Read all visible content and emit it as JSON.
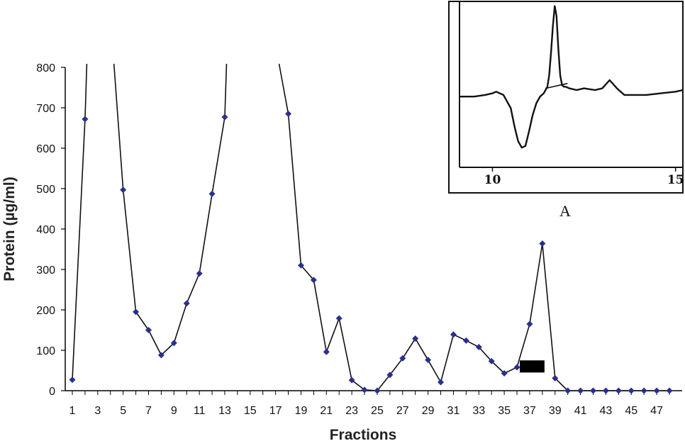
{
  "chart_data": [
    {
      "type": "line",
      "xlabel": "Fractions",
      "ylabel": "Protein (µg/ml)",
      "ylim": [
        0,
        800
      ],
      "xlim": [
        1,
        48
      ],
      "y_ticks": [
        0,
        100,
        200,
        300,
        400,
        500,
        600,
        700,
        800
      ],
      "x_ticks": [
        1,
        3,
        5,
        7,
        9,
        11,
        13,
        15,
        17,
        19,
        21,
        23,
        25,
        27,
        29,
        31,
        33,
        35,
        37,
        39,
        41,
        43,
        45,
        47
      ],
      "series": [
        {
          "x": [
            1,
            2,
            5,
            6,
            7,
            8,
            9,
            10,
            11,
            12,
            13,
            18,
            19,
            20,
            21,
            22,
            23,
            24,
            25,
            26,
            27,
            28,
            29,
            30,
            31,
            32,
            33,
            34,
            35,
            36,
            37,
            38,
            39,
            40,
            41,
            42,
            43,
            44,
            45,
            46,
            47,
            48
          ],
          "values": [
            27,
            672,
            497,
            195,
            150,
            88,
            118,
            216,
            290,
            487,
            677,
            685,
            310,
            274,
            96,
            179,
            26,
            2,
            0,
            39,
            80,
            129,
            76,
            21,
            139,
            124,
            108,
            73,
            43,
            58,
            165,
            364,
            31,
            0,
            0,
            0,
            0,
            0,
            0,
            0,
            0,
            0
          ],
          "color": "#2b2f8f"
        }
      ],
      "offscale_peaks": [
        {
          "from_fraction": 2,
          "to_fraction": 5
        },
        {
          "from_fraction": 13,
          "to_fraction": 18
        }
      ],
      "marker": {
        "fractions": [
          36,
          38
        ],
        "color": "#000000"
      },
      "grid": false,
      "legend": "none"
    },
    {
      "type": "line",
      "label": "A",
      "x_ticks": [
        10,
        15
      ],
      "xlim": [
        9.1,
        15.2
      ],
      "ylim": [
        0,
        1
      ],
      "series": [
        {
          "x": [
            9.1,
            9.5,
            9.8,
            10.0,
            10.1,
            10.3,
            10.5,
            10.6,
            10.7,
            10.8,
            10.9,
            11.0,
            11.1,
            11.2,
            11.3,
            11.4,
            11.5,
            11.55,
            11.6,
            11.65,
            11.7,
            11.75,
            11.8,
            11.85,
            11.9,
            11.95,
            12.0,
            12.1,
            12.3,
            12.5,
            12.8,
            13.0,
            13.2,
            13.4,
            13.6,
            13.8,
            14.2,
            14.6,
            15.0,
            15.2
          ],
          "values": [
            0.43,
            0.43,
            0.44,
            0.45,
            0.46,
            0.44,
            0.36,
            0.25,
            0.16,
            0.12,
            0.13,
            0.22,
            0.32,
            0.39,
            0.43,
            0.45,
            0.49,
            0.56,
            0.7,
            0.86,
            0.98,
            0.92,
            0.72,
            0.56,
            0.5,
            0.49,
            0.49,
            0.48,
            0.47,
            0.48,
            0.47,
            0.48,
            0.53,
            0.48,
            0.44,
            0.44,
            0.44,
            0.45,
            0.46,
            0.47
          ],
          "color": "#111111"
        }
      ],
      "baseline": {
        "x": [
          11.45,
          12.05
        ],
        "values": [
          0.48,
          0.51
        ]
      },
      "grid": false,
      "legend": "none"
    }
  ]
}
